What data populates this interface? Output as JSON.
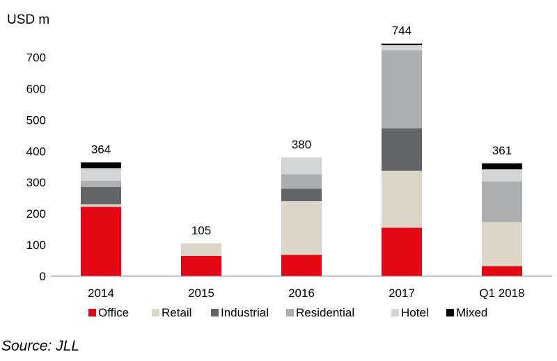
{
  "chart_data": {
    "type": "bar",
    "stacked": true,
    "title": "",
    "ylabel": "USD m",
    "xlabel": "",
    "ylim": [
      0,
      750
    ],
    "yticks": [
      0,
      100,
      200,
      300,
      400,
      500,
      600,
      700
    ],
    "grid": false,
    "legend_position": "bottom",
    "categories": [
      "2014",
      "2015",
      "2016",
      "2017",
      "Q1 2018"
    ],
    "totals": [
      "364",
      "105",
      "380",
      "744",
      "361"
    ],
    "series": [
      {
        "name": "Office",
        "color": "#e30613",
        "values": [
          222,
          65,
          68,
          155,
          32
        ]
      },
      {
        "name": "Retail",
        "color": "#ddd6c8",
        "values": [
          8,
          40,
          172,
          182,
          141
        ]
      },
      {
        "name": "Industrial",
        "color": "#636466",
        "values": [
          55,
          0,
          40,
          136,
          0
        ]
      },
      {
        "name": "Residential",
        "color": "#adaeb0",
        "values": [
          20,
          0,
          46,
          250,
          130
        ]
      },
      {
        "name": "Hotel",
        "color": "#d4d5d6",
        "values": [
          40,
          0,
          54,
          16,
          39
        ]
      },
      {
        "name": "Mixed",
        "color": "#000000",
        "values": [
          19,
          0,
          0,
          5,
          19
        ]
      }
    ]
  },
  "source": "Source: JLL"
}
